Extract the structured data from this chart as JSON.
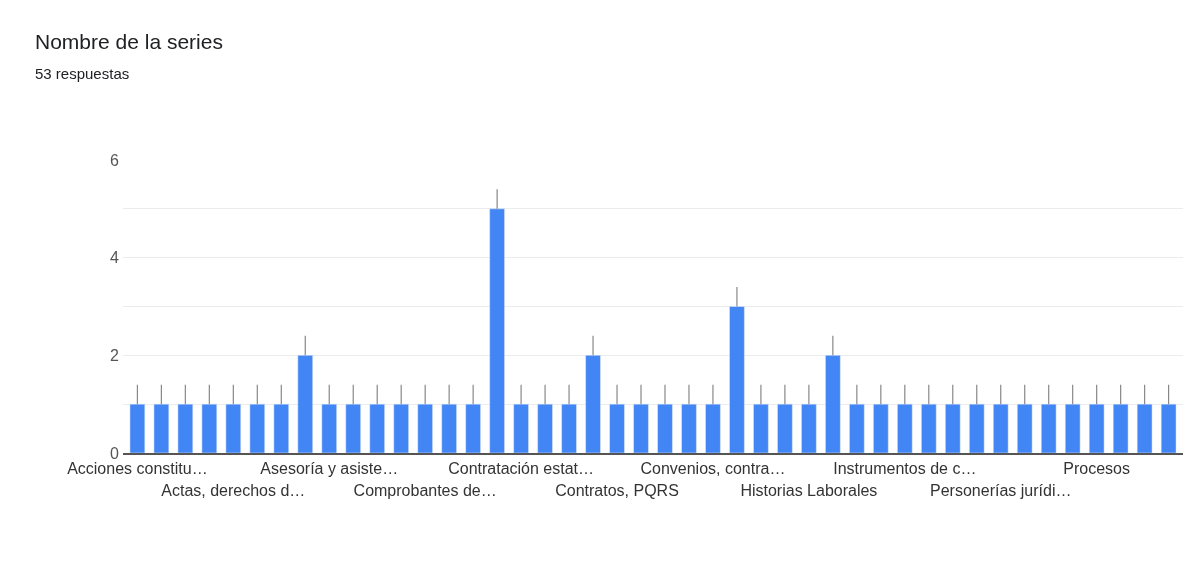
{
  "chart_data": {
    "type": "bar",
    "title": "Nombre de la series",
    "subtitle": "53 respuestas",
    "categories": [
      "Acciones constitu…",
      null,
      null,
      null,
      "Actas, derechos d…",
      null,
      null,
      null,
      "Asesoría y asiste…",
      null,
      null,
      null,
      "Comprobantes de…",
      null,
      null,
      null,
      "Contratación estat…",
      null,
      null,
      null,
      "Contratos, PQRS",
      null,
      null,
      null,
      "Convenios, contra…",
      null,
      null,
      null,
      "Historias Laborales",
      null,
      null,
      null,
      "Instrumentos de c…",
      null,
      null,
      null,
      "Personerías jurídi…",
      null,
      null,
      null,
      "Procesos",
      null,
      null,
      null
    ],
    "values": [
      1,
      1,
      1,
      1,
      1,
      1,
      1,
      2,
      1,
      1,
      1,
      1,
      1,
      1,
      1,
      5,
      1,
      1,
      1,
      2,
      1,
      1,
      1,
      1,
      1,
      3,
      1,
      1,
      1,
      2,
      1,
      1,
      1,
      1,
      1,
      1,
      1,
      1,
      1,
      1,
      1,
      1,
      1,
      1
    ],
    "errors": [
      [
        1,
        1.4
      ],
      [
        1,
        1.4
      ],
      [
        1,
        1.4
      ],
      [
        1,
        1.4
      ],
      [
        1,
        1.4
      ],
      [
        1,
        1.4
      ],
      [
        1,
        1.4
      ],
      [
        2,
        2.4
      ],
      [
        1,
        1.4
      ],
      [
        1,
        1.4
      ],
      [
        1,
        1.4
      ],
      [
        1,
        1.4
      ],
      [
        1,
        1.4
      ],
      [
        1,
        1.4
      ],
      [
        1,
        1.4
      ],
      [
        5,
        5.4
      ],
      [
        1,
        1.4
      ],
      [
        1,
        1.4
      ],
      [
        1,
        1.4
      ],
      [
        2,
        2.4
      ],
      [
        1,
        1.4
      ],
      [
        1,
        1.4
      ],
      [
        1,
        1.4
      ],
      [
        1,
        1.4
      ],
      [
        1,
        1.4
      ],
      [
        3,
        3.4
      ],
      [
        1,
        1.4
      ],
      [
        1,
        1.4
      ],
      [
        1,
        1.4
      ],
      [
        2,
        2.4
      ],
      [
        1,
        1.4
      ],
      [
        1,
        1.4
      ],
      [
        1,
        1.4
      ],
      [
        1,
        1.4
      ],
      [
        1,
        1.4
      ],
      [
        1,
        1.4
      ],
      [
        1,
        1.4
      ],
      [
        1,
        1.4
      ],
      [
        1,
        1.4
      ],
      [
        1,
        1.4
      ],
      [
        1,
        1.4
      ],
      [
        1,
        1.4
      ],
      [
        1,
        1.4
      ],
      [
        1,
        1.4
      ]
    ],
    "color": "#4285f4",
    "ylim": [
      0,
      6
    ],
    "yticks": [
      0,
      {
        "value": 1,
        "label": null
      },
      2,
      {
        "value": 3,
        "label": null
      },
      4,
      {
        "value": 5,
        "label": null
      },
      6
    ],
    "grid": "y",
    "legend": false
  }
}
